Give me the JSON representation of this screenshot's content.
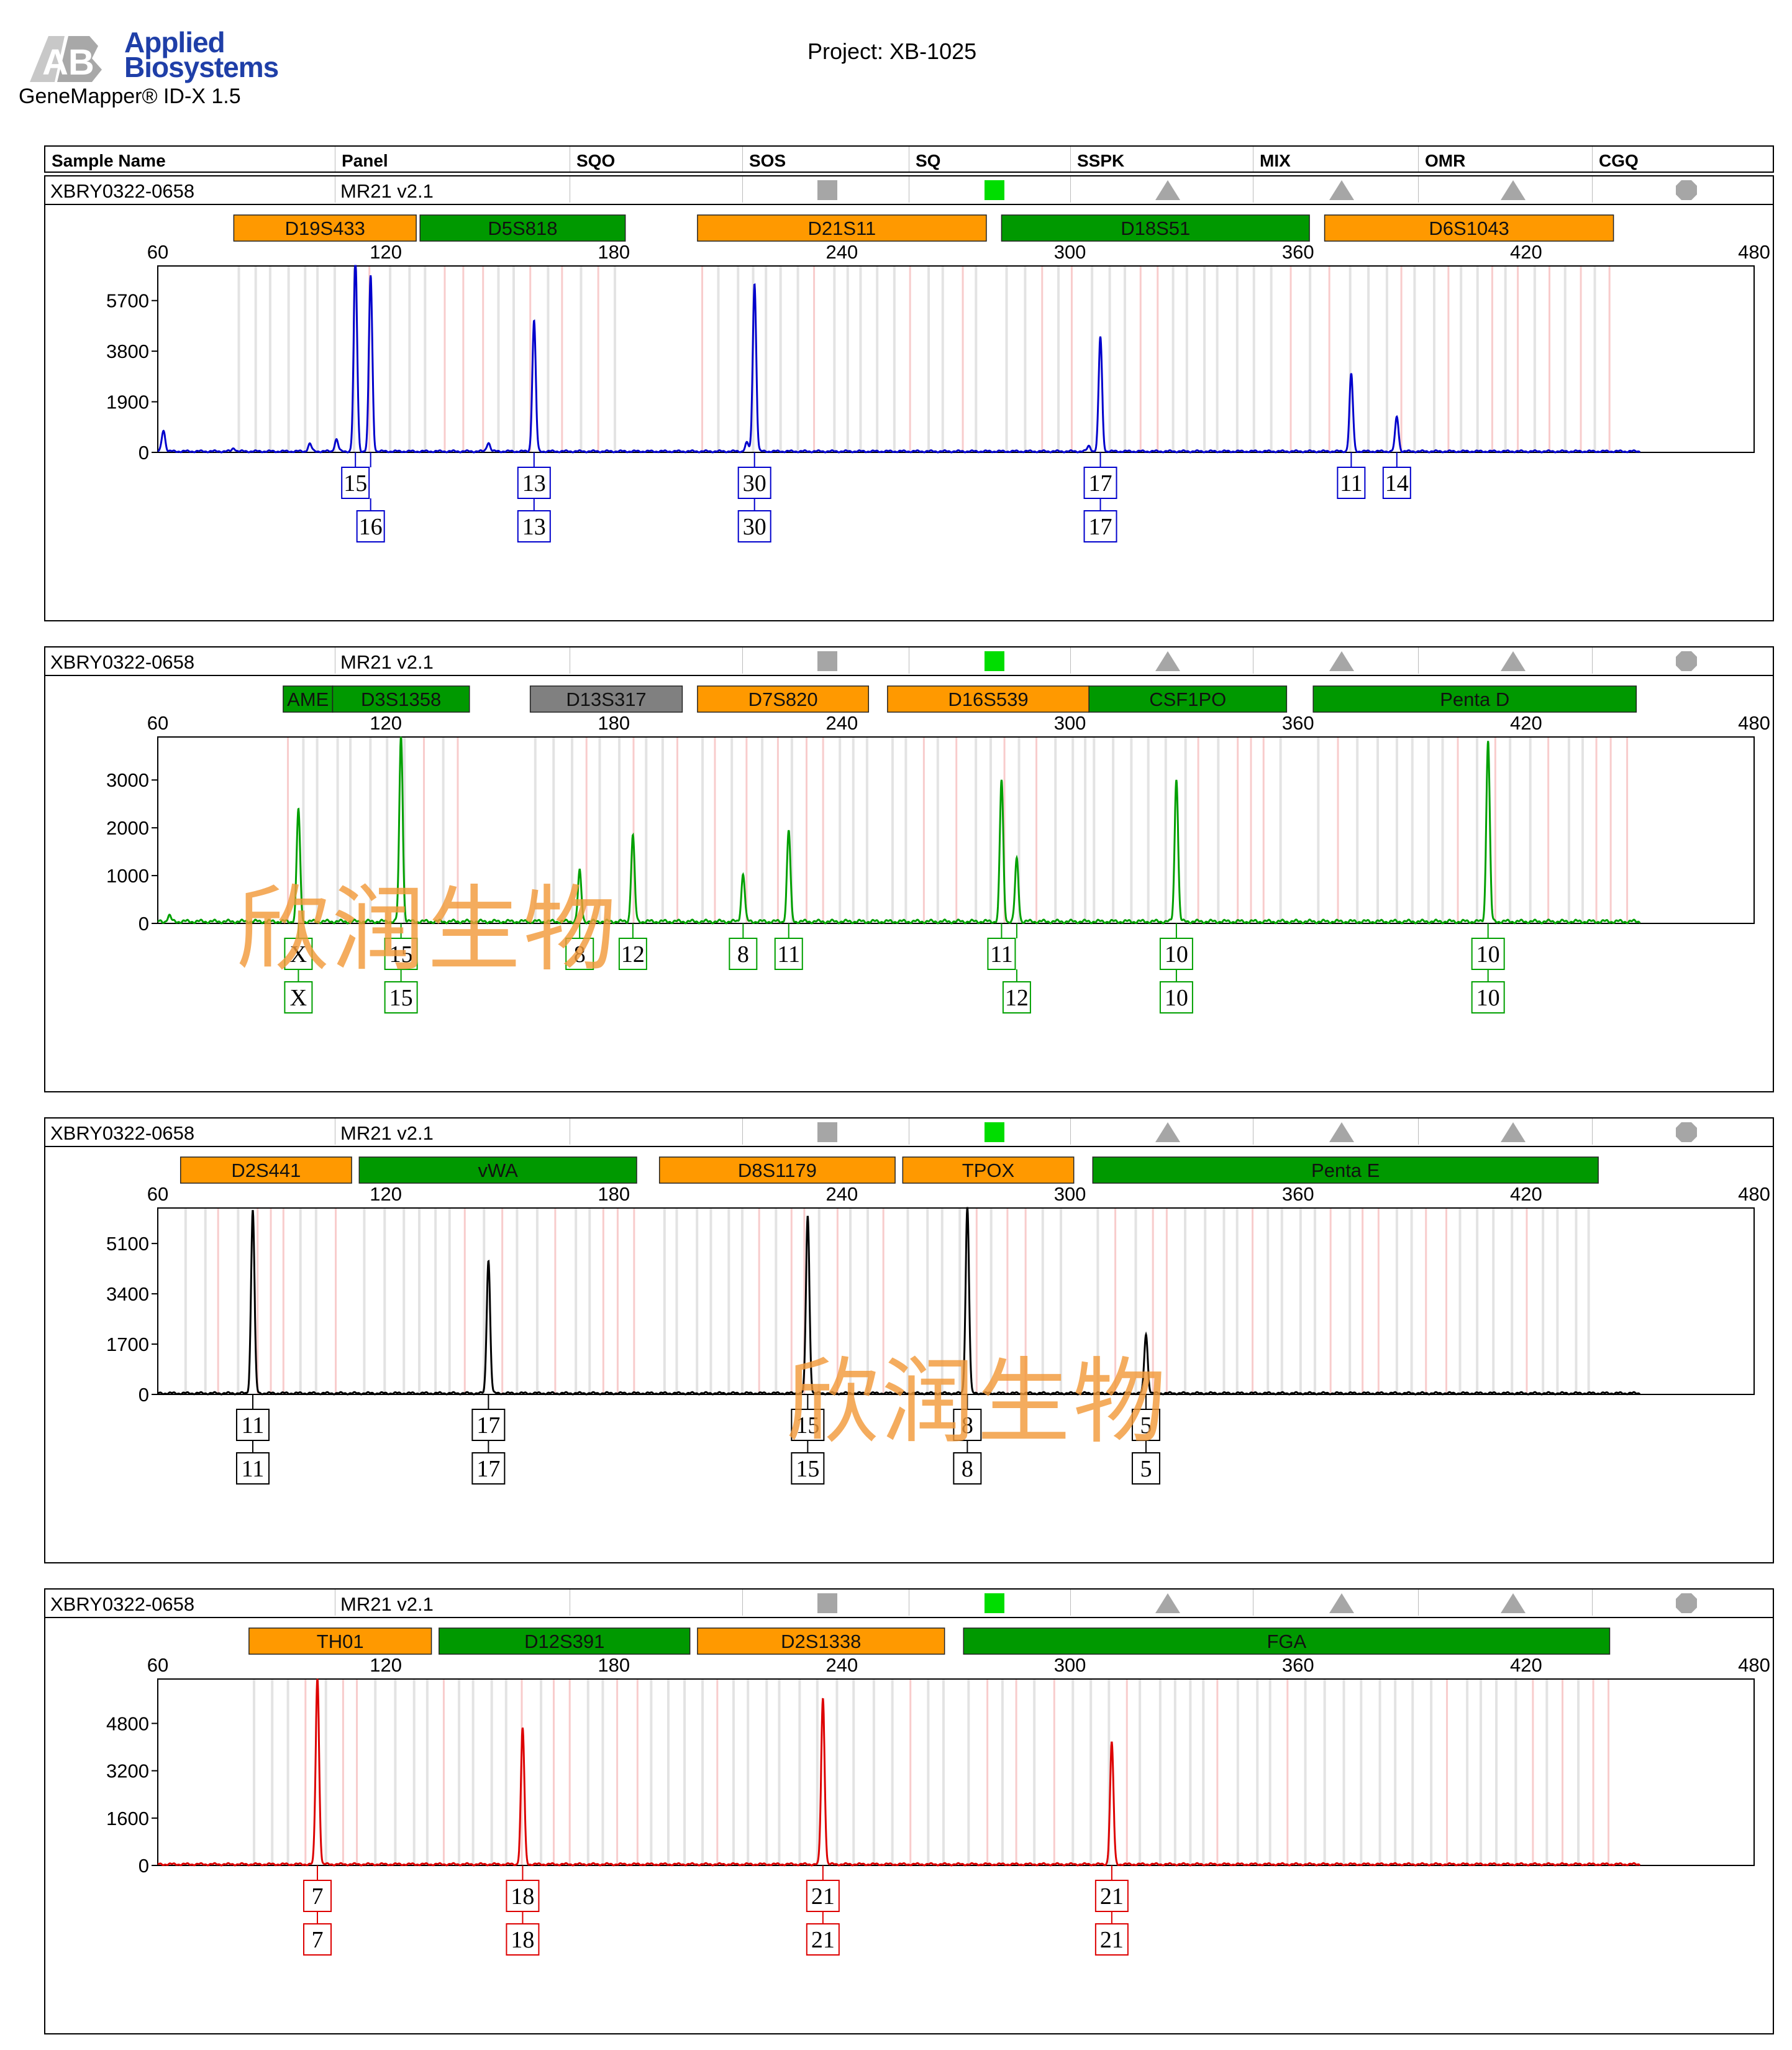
{
  "brand": {
    "line1": "Applied",
    "line2": "Biosystems",
    "logo_text": "AB",
    "product": "GeneMapper® ID-X  1.5"
  },
  "project": "Project: XB-1025",
  "columns": [
    "Sample Name",
    "Panel",
    "SQO",
    "SOS",
    "SQ",
    "SSPK",
    "MIX",
    "OMR",
    "CGQ"
  ],
  "colors": {
    "orange": "#ff9900",
    "green": "#009900",
    "gray": "#808080",
    "quality_gray": "#a6a6a6",
    "quality_green": "#00dd00",
    "blue": "#0000cc",
    "dye_green": "#00a000",
    "black": "#000000",
    "red": "#dd0000"
  },
  "watermark": "欣润生物",
  "chart_data": [
    {
      "type": "line",
      "sample_name": "XBRY0322-0658",
      "panel": "MR21  v2.1",
      "quality": {
        "sqo": "square-gray",
        "sq": "square-green",
        "sspk": "triangle-gray",
        "mix": "triangle-gray",
        "omr": "triangle-gray",
        "cgq": "circle-gray"
      },
      "color": "#0000cc",
      "xlim": [
        60,
        480
      ],
      "xticks": [
        60,
        120,
        180,
        240,
        300,
        360,
        420,
        480
      ],
      "ylim": [
        0,
        7000
      ],
      "yticks": [
        0,
        1900,
        3800,
        5700
      ],
      "markers": [
        {
          "name": "D19S433",
          "start": 80,
          "end": 128,
          "color": "orange"
        },
        {
          "name": "D5S818",
          "start": 129,
          "end": 183,
          "color": "green"
        },
        {
          "name": "D21S11",
          "start": 202,
          "end": 278,
          "color": "orange"
        },
        {
          "name": "D18S51",
          "start": 282,
          "end": 363,
          "color": "green"
        },
        {
          "name": "D6S1043",
          "start": 367,
          "end": 443,
          "color": "orange"
        }
      ],
      "peaks": [
        [
          61.5,
          800
        ],
        [
          80,
          120
        ],
        [
          100,
          280
        ],
        [
          107,
          450
        ],
        [
          112,
          7200
        ],
        [
          116,
          6600
        ],
        [
          147,
          330
        ],
        [
          159,
          4900
        ],
        [
          215,
          320
        ],
        [
          217,
          6300
        ],
        [
          305,
          200
        ],
        [
          308,
          4300
        ],
        [
          374,
          2900
        ],
        [
          386,
          1300
        ]
      ],
      "alleles": [
        {
          "x": 112,
          "row1": "15",
          "row2": ""
        },
        {
          "x": 116,
          "row1": "",
          "row2": "16"
        },
        {
          "x": 159,
          "row1": "13",
          "row2": "13"
        },
        {
          "x": 217,
          "row1": "30",
          "row2": "30"
        },
        {
          "x": 308,
          "row1": "17",
          "row2": "17"
        },
        {
          "x": 374,
          "row1": "11",
          "row2": ""
        },
        {
          "x": 386,
          "row1": "14",
          "row2": ""
        }
      ]
    },
    {
      "type": "line",
      "sample_name": "XBRY0322-0658",
      "panel": "MR21  v2.1",
      "quality": {
        "sqo": "square-gray",
        "sq": "square-green",
        "sspk": "triangle-gray",
        "mix": "triangle-gray",
        "omr": "triangle-gray",
        "cgq": "circle-gray"
      },
      "color": "#00a000",
      "xlim": [
        60,
        480
      ],
      "xticks": [
        60,
        120,
        180,
        240,
        300,
        360,
        420,
        480
      ],
      "ylim": [
        0,
        3900
      ],
      "yticks": [
        0,
        1000,
        2000,
        3000
      ],
      "markers": [
        {
          "name": "AME",
          "start": 93,
          "end": 106,
          "color": "green"
        },
        {
          "name": "D3S1358",
          "start": 106,
          "end": 142,
          "color": "green"
        },
        {
          "name": "D13S317",
          "start": 158,
          "end": 198,
          "color": "gray"
        },
        {
          "name": "D7S820",
          "start": 202,
          "end": 247,
          "color": "orange"
        },
        {
          "name": "D16S539",
          "start": 252,
          "end": 305,
          "color": "orange"
        },
        {
          "name": "CSF1PO",
          "start": 305,
          "end": 357,
          "color": "green"
        },
        {
          "name": "Penta D",
          "start": 364,
          "end": 449,
          "color": "green"
        }
      ],
      "peaks": [
        [
          63,
          120
        ],
        [
          97,
          2350
        ],
        [
          124,
          3900
        ],
        [
          171,
          1050
        ],
        [
          185,
          1800
        ],
        [
          214,
          1000
        ],
        [
          226,
          1900
        ],
        [
          282,
          2950
        ],
        [
          286,
          1300
        ],
        [
          328,
          3000
        ],
        [
          410,
          3800
        ]
      ],
      "alleles": [
        {
          "x": 97,
          "row1": "X",
          "row2": "X"
        },
        {
          "x": 124,
          "row1": "15",
          "row2": "15"
        },
        {
          "x": 171,
          "row1": "8",
          "row2": ""
        },
        {
          "x": 185,
          "row1": "12",
          "row2": ""
        },
        {
          "x": 214,
          "row1": "8",
          "row2": ""
        },
        {
          "x": 226,
          "row1": "11",
          "row2": ""
        },
        {
          "x": 282,
          "row1": "11",
          "row2": ""
        },
        {
          "x": 286,
          "row1": "",
          "row2": "12"
        },
        {
          "x": 328,
          "row1": "10",
          "row2": "10"
        },
        {
          "x": 410,
          "row1": "10",
          "row2": "10"
        }
      ]
    },
    {
      "type": "line",
      "sample_name": "XBRY0322-0658",
      "panel": "MR21  v2.1",
      "quality": {
        "sqo": "square-gray",
        "sq": "square-green",
        "sspk": "triangle-gray",
        "mix": "triangle-gray",
        "omr": "triangle-gray",
        "cgq": "circle-gray"
      },
      "color": "#000000",
      "xlim": [
        60,
        480
      ],
      "xticks": [
        60,
        120,
        180,
        240,
        300,
        360,
        420,
        480
      ],
      "ylim": [
        0,
        6300
      ],
      "yticks": [
        0,
        1700,
        3400,
        5100
      ],
      "markers": [
        {
          "name": "D2S441",
          "start": 66,
          "end": 111,
          "color": "orange"
        },
        {
          "name": "vWA",
          "start": 113,
          "end": 186,
          "color": "green"
        },
        {
          "name": "D8S1179",
          "start": 192,
          "end": 254,
          "color": "orange"
        },
        {
          "name": "TPOX",
          "start": 256,
          "end": 301,
          "color": "orange"
        },
        {
          "name": "Penta E",
          "start": 306,
          "end": 439,
          "color": "green"
        }
      ],
      "peaks": [
        [
          85,
          6200
        ],
        [
          147,
          4500
        ],
        [
          231,
          6000
        ],
        [
          273,
          6300
        ],
        [
          320,
          2000
        ]
      ],
      "alleles": [
        {
          "x": 85,
          "row1": "11",
          "row2": "11"
        },
        {
          "x": 147,
          "row1": "17",
          "row2": "17"
        },
        {
          "x": 231,
          "row1": "15",
          "row2": "15"
        },
        {
          "x": 273,
          "row1": "8",
          "row2": "8"
        },
        {
          "x": 320,
          "row1": "5",
          "row2": "5"
        }
      ]
    },
    {
      "type": "line",
      "sample_name": "XBRY0322-0658",
      "panel": "MR21  v2.1",
      "quality": {
        "sqo": "square-gray",
        "sq": "square-green",
        "sspk": "triangle-gray",
        "mix": "triangle-gray",
        "omr": "triangle-gray",
        "cgq": "circle-gray"
      },
      "color": "#dd0000",
      "xlim": [
        60,
        480
      ],
      "xticks": [
        60,
        120,
        180,
        240,
        300,
        360,
        420,
        480
      ],
      "ylim": [
        0,
        6300
      ],
      "yticks": [
        0,
        1600,
        3200,
        4800
      ],
      "markers": [
        {
          "name": "TH01",
          "start": 84,
          "end": 132,
          "color": "orange"
        },
        {
          "name": "D12S391",
          "start": 134,
          "end": 200,
          "color": "green"
        },
        {
          "name": "D2S1338",
          "start": 202,
          "end": 267,
          "color": "orange"
        },
        {
          "name": "FGA",
          "start": 272,
          "end": 442,
          "color": "green"
        }
      ],
      "peaks": [
        [
          102,
          6300
        ],
        [
          156,
          4600
        ],
        [
          235,
          5600
        ],
        [
          311,
          4100
        ]
      ],
      "alleles": [
        {
          "x": 102,
          "row1": "7",
          "row2": "7"
        },
        {
          "x": 156,
          "row1": "18",
          "row2": "18"
        },
        {
          "x": 235,
          "row1": "21",
          "row2": "21"
        },
        {
          "x": 311,
          "row1": "21",
          "row2": "21"
        }
      ]
    }
  ]
}
